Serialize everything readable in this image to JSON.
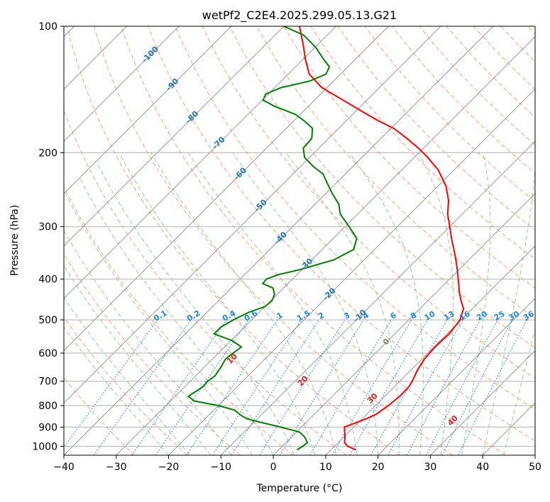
{
  "chart_data": {
    "type": "line",
    "subtype": "skew-t log-p diagram",
    "title": "wetPf2_C2E4.2025.299.05.13.G21",
    "xlabel": "Temperature (°C)",
    "ylabel": "Pressure (hPa)",
    "xlim": [
      -40,
      50
    ],
    "ylim": [
      1050,
      100
    ],
    "y_scale": "log",
    "x_ticks": [
      -40,
      -30,
      -20,
      -10,
      0,
      10,
      20,
      30,
      40,
      50
    ],
    "x_tick_labels": [
      "−40",
      "−30",
      "−20",
      "−10",
      "0",
      "10",
      "20",
      "30",
      "40",
      "50"
    ],
    "y_ticks": [
      100,
      200,
      300,
      400,
      500,
      600,
      700,
      800,
      900,
      1000
    ],
    "y_tick_labels": [
      "100",
      "200",
      "300",
      "400",
      "500",
      "600",
      "700",
      "800",
      "900",
      "1000"
    ],
    "grid": true,
    "colors": {
      "temperature": "#ff0000",
      "dewpoint": "#008000",
      "isotherm": "#808080",
      "dry_adiabat": "#ff9c7a",
      "moist_adiabat": "#8fd18f",
      "mixing_ratio": "#1e88e5",
      "isotherm_label": "#1f77b4",
      "dry_adiabat_label": "#d62728",
      "grid": "#b0b0b0"
    },
    "series": [
      {
        "role": "temperature",
        "points": [
          [
            1020,
            14.8
          ],
          [
            1000,
            12.5
          ],
          [
            980,
            11.2
          ],
          [
            950,
            10.2
          ],
          [
            920,
            9.0
          ],
          [
            900,
            8.2
          ],
          [
            880,
            9.5
          ],
          [
            860,
            10.8
          ],
          [
            840,
            11.8
          ],
          [
            800,
            12.5
          ],
          [
            760,
            12.9
          ],
          [
            720,
            12.8
          ],
          [
            700,
            12.4
          ],
          [
            660,
            11.3
          ],
          [
            620,
            10.5
          ],
          [
            580,
            10.2
          ],
          [
            540,
            10.4
          ],
          [
            500,
            9.8
          ],
          [
            470,
            8.3
          ],
          [
            450,
            6.3
          ],
          [
            430,
            4.4
          ],
          [
            410,
            2.6
          ],
          [
            380,
            -0.3
          ],
          [
            350,
            -3.6
          ],
          [
            320,
            -7.4
          ],
          [
            300,
            -10.0
          ],
          [
            280,
            -12.8
          ],
          [
            260,
            -15.2
          ],
          [
            240,
            -18.5
          ],
          [
            220,
            -23.0
          ],
          [
            205,
            -27.5
          ],
          [
            195,
            -31.0
          ],
          [
            185,
            -35.0
          ],
          [
            175,
            -39.5
          ],
          [
            168,
            -43.8
          ],
          [
            160,
            -48.5
          ],
          [
            150,
            -54.5
          ],
          [
            140,
            -61.0
          ],
          [
            130,
            -66.0
          ],
          [
            120,
            -69.5
          ],
          [
            110,
            -73.0
          ],
          [
            100,
            -77.0
          ]
        ]
      },
      {
        "role": "dewpoint",
        "points": [
          [
            1020,
            3.5
          ],
          [
            1000,
            3.9
          ],
          [
            980,
            4.1
          ],
          [
            950,
            2.5
          ],
          [
            925,
            0.6
          ],
          [
            900,
            -4.0
          ],
          [
            880,
            -8.0
          ],
          [
            860,
            -12.0
          ],
          [
            840,
            -14.2
          ],
          [
            820,
            -16.0
          ],
          [
            800,
            -20.0
          ],
          [
            780,
            -25.5
          ],
          [
            760,
            -27.5
          ],
          [
            740,
            -27.0
          ],
          [
            720,
            -26.5
          ],
          [
            700,
            -26.7
          ],
          [
            680,
            -26.3
          ],
          [
            650,
            -26.8
          ],
          [
            620,
            -27.5
          ],
          [
            600,
            -27.2
          ],
          [
            580,
            -26.8
          ],
          [
            560,
            -29.8
          ],
          [
            540,
            -34.5
          ],
          [
            520,
            -34.5
          ],
          [
            500,
            -33.5
          ],
          [
            480,
            -32.0
          ],
          [
            465,
            -30.0
          ],
          [
            450,
            -29.8
          ],
          [
            435,
            -30.5
          ],
          [
            420,
            -32.0
          ],
          [
            410,
            -34.8
          ],
          [
            400,
            -35.0
          ],
          [
            390,
            -33.5
          ],
          [
            380,
            -30.5
          ],
          [
            360,
            -25.8
          ],
          [
            340,
            -24.0
          ],
          [
            320,
            -25.5
          ],
          [
            300,
            -29.2
          ],
          [
            280,
            -33.3
          ],
          [
            265,
            -35.5
          ],
          [
            250,
            -38.8
          ],
          [
            235,
            -42.0
          ],
          [
            225,
            -44.2
          ],
          [
            215,
            -47.8
          ],
          [
            205,
            -51.0
          ],
          [
            195,
            -53.0
          ],
          [
            185,
            -53.2
          ],
          [
            175,
            -55.0
          ],
          [
            168,
            -58.0
          ],
          [
            162,
            -61.0
          ],
          [
            155,
            -66.5
          ],
          [
            150,
            -69.8
          ],
          [
            145,
            -70.5
          ],
          [
            140,
            -68.8
          ],
          [
            135,
            -64.5
          ],
          [
            130,
            -62.8
          ],
          [
            125,
            -63.5
          ],
          [
            120,
            -66.0
          ],
          [
            112,
            -70.0
          ],
          [
            105,
            -74.5
          ],
          [
            100,
            -80.0
          ]
        ]
      }
    ],
    "isotherm_labels": [
      "-100",
      "-90",
      "-80",
      "-70",
      "-60",
      "-50",
      "-40",
      "-30",
      "-20",
      "-10",
      "0"
    ],
    "dry_adiabat_labels": [
      "10",
      "20",
      "30",
      "40"
    ],
    "mixing_ratio_labels": [
      "0.1",
      "0.2",
      "0.4",
      "0.6",
      "1",
      "1.5",
      "2",
      "3",
      "4",
      "6",
      "8",
      "10",
      "13",
      "16",
      "20",
      "25",
      "30",
      "36"
    ]
  }
}
